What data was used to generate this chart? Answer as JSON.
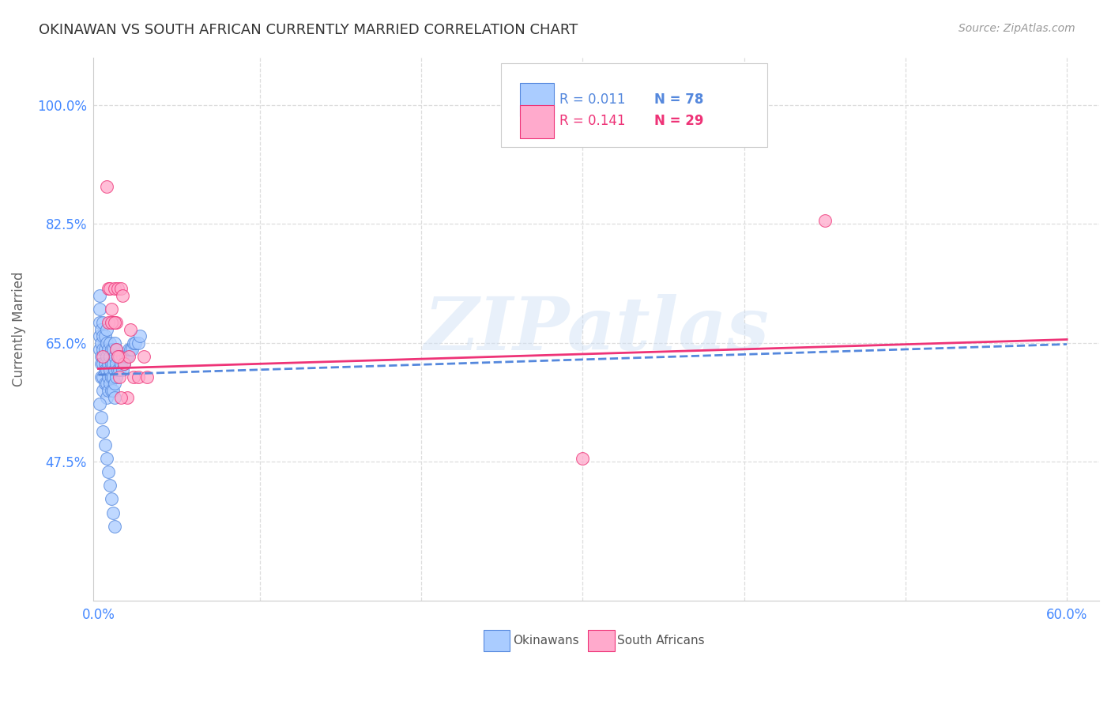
{
  "title": "OKINAWAN VS SOUTH AFRICAN CURRENTLY MARRIED CORRELATION CHART",
  "source": "Source: ZipAtlas.com",
  "ylabel": "Currently Married",
  "xlim": [
    -0.003,
    0.62
  ],
  "ylim": [
    0.27,
    1.07
  ],
  "xtick_positions": [
    0.0,
    0.1,
    0.2,
    0.3,
    0.4,
    0.5,
    0.6
  ],
  "xticklabels": [
    "0.0%",
    "",
    "",
    "",
    "",
    "",
    "60.0%"
  ],
  "ytick_positions": [
    0.475,
    0.65,
    0.825,
    1.0
  ],
  "yticklabels": [
    "47.5%",
    "65.0%",
    "82.5%",
    "100.0%"
  ],
  "okinawan_R": 0.011,
  "okinawan_N": 78,
  "southafrican_R": 0.141,
  "southafrican_N": 29,
  "okinawan_color": "#aaccff",
  "southafrican_color": "#ffaacc",
  "trendline_okinawan_color": "#5588dd",
  "trendline_southafrican_color": "#ee3377",
  "background_color": "#ffffff",
  "grid_color": "#dddddd",
  "title_color": "#333333",
  "axis_label_color": "#4488ff",
  "watermark_text": "ZIPatlas",
  "watermark_color": "#ccdff5",
  "okinawan_x": [
    0.001,
    0.001,
    0.001,
    0.001,
    0.001,
    0.002,
    0.002,
    0.002,
    0.002,
    0.002,
    0.003,
    0.003,
    0.003,
    0.003,
    0.003,
    0.003,
    0.004,
    0.004,
    0.004,
    0.004,
    0.004,
    0.005,
    0.005,
    0.005,
    0.005,
    0.005,
    0.005,
    0.006,
    0.006,
    0.006,
    0.006,
    0.007,
    0.007,
    0.007,
    0.007,
    0.008,
    0.008,
    0.008,
    0.008,
    0.009,
    0.009,
    0.009,
    0.009,
    0.01,
    0.01,
    0.01,
    0.01,
    0.01,
    0.011,
    0.011,
    0.011,
    0.012,
    0.012,
    0.013,
    0.013,
    0.014,
    0.015,
    0.015,
    0.016,
    0.017,
    0.018,
    0.019,
    0.02,
    0.021,
    0.022,
    0.023,
    0.025,
    0.026,
    0.001,
    0.002,
    0.003,
    0.004,
    0.005,
    0.006,
    0.007,
    0.008,
    0.009,
    0.01
  ],
  "okinawan_y": [
    0.72,
    0.7,
    0.68,
    0.66,
    0.64,
    0.67,
    0.65,
    0.63,
    0.62,
    0.6,
    0.68,
    0.66,
    0.64,
    0.62,
    0.6,
    0.58,
    0.66,
    0.64,
    0.62,
    0.61,
    0.59,
    0.67,
    0.65,
    0.63,
    0.61,
    0.59,
    0.57,
    0.64,
    0.62,
    0.6,
    0.58,
    0.65,
    0.63,
    0.61,
    0.59,
    0.64,
    0.62,
    0.6,
    0.58,
    0.64,
    0.62,
    0.6,
    0.58,
    0.65,
    0.63,
    0.61,
    0.59,
    0.57,
    0.64,
    0.62,
    0.6,
    0.63,
    0.61,
    0.63,
    0.61,
    0.62,
    0.63,
    0.61,
    0.62,
    0.63,
    0.63,
    0.64,
    0.64,
    0.64,
    0.65,
    0.65,
    0.65,
    0.66,
    0.56,
    0.54,
    0.52,
    0.5,
    0.48,
    0.46,
    0.44,
    0.42,
    0.4,
    0.38
  ],
  "southafrican_x": [
    0.005,
    0.006,
    0.007,
    0.008,
    0.009,
    0.01,
    0.011,
    0.011,
    0.012,
    0.013,
    0.013,
    0.014,
    0.015,
    0.016,
    0.018,
    0.019,
    0.02,
    0.022,
    0.025,
    0.028,
    0.03,
    0.003,
    0.006,
    0.008,
    0.01,
    0.012,
    0.014,
    0.3,
    0.45
  ],
  "southafrican_y": [
    0.88,
    0.73,
    0.73,
    0.7,
    0.68,
    0.73,
    0.68,
    0.64,
    0.73,
    0.63,
    0.6,
    0.73,
    0.72,
    0.62,
    0.57,
    0.63,
    0.67,
    0.6,
    0.6,
    0.63,
    0.6,
    0.63,
    0.68,
    0.68,
    0.68,
    0.63,
    0.57,
    0.48,
    0.83
  ]
}
